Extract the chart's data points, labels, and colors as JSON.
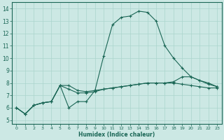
{
  "xlabel": "Humidex (Indice chaleur)",
  "bg_color": "#cce8e4",
  "grid_color": "#aad4cc",
  "line_color": "#1a6655",
  "xlim": [
    -0.5,
    23.5
  ],
  "ylim": [
    4.7,
    14.5
  ],
  "xticks": [
    0,
    1,
    2,
    3,
    4,
    5,
    6,
    7,
    8,
    9,
    10,
    11,
    12,
    13,
    14,
    15,
    16,
    17,
    18,
    19,
    20,
    21,
    22,
    23
  ],
  "yticks": [
    5,
    6,
    7,
    8,
    9,
    10,
    11,
    12,
    13,
    14
  ],
  "curve1_x": [
    0,
    1,
    2,
    3,
    4,
    5,
    6,
    7,
    8,
    9,
    10,
    11,
    12,
    13,
    14,
    15,
    16,
    17,
    18,
    19,
    20,
    21,
    22,
    23
  ],
  "curve1_y": [
    6.0,
    5.5,
    6.2,
    6.4,
    6.5,
    7.8,
    6.0,
    6.5,
    6.5,
    7.4,
    10.2,
    12.7,
    13.3,
    13.4,
    13.8,
    13.7,
    13.0,
    11.0,
    10.0,
    9.2,
    8.5,
    8.2,
    7.9,
    7.7
  ],
  "curve2_x": [
    0,
    1,
    2,
    3,
    4,
    5,
    6,
    7,
    8,
    9,
    10,
    11,
    12,
    13,
    14,
    15,
    16,
    17,
    18,
    19,
    20,
    21,
    22,
    23
  ],
  "curve2_y": [
    6.0,
    5.5,
    6.2,
    6.4,
    6.5,
    7.8,
    7.5,
    7.2,
    7.2,
    7.3,
    7.5,
    7.6,
    7.7,
    7.8,
    7.9,
    8.0,
    8.0,
    8.0,
    8.1,
    8.5,
    8.5,
    8.2,
    8.0,
    7.7
  ],
  "curve3_x": [
    0,
    1,
    2,
    3,
    4,
    5,
    6,
    7,
    8,
    9,
    10,
    11,
    12,
    13,
    14,
    15,
    16,
    17,
    18,
    19,
    20,
    21,
    22,
    23
  ],
  "curve3_y": [
    6.0,
    5.5,
    6.2,
    6.4,
    6.5,
    7.8,
    7.8,
    7.4,
    7.3,
    7.4,
    7.5,
    7.6,
    7.7,
    7.8,
    7.9,
    8.0,
    8.0,
    8.0,
    8.0,
    7.9,
    7.8,
    7.7,
    7.6,
    7.6
  ]
}
